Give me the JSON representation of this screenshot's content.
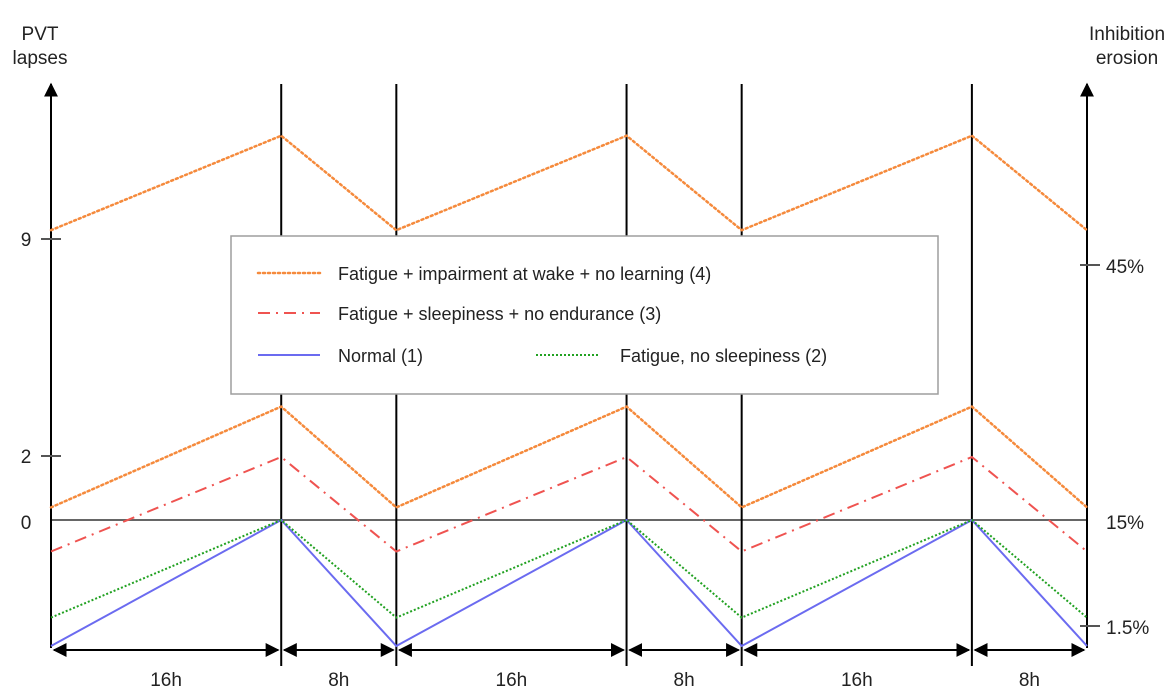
{
  "chart_data": {
    "type": "line",
    "left_axis_label": [
      "PVT",
      "lapses"
    ],
    "right_axis_label": [
      "Inhibition",
      "erosion"
    ],
    "left_ticks": [
      "9",
      "2",
      "0"
    ],
    "right_ticks": [
      "45%",
      "15%",
      "1.5%"
    ],
    "durations": [
      "16h",
      "8h",
      "16h",
      "8h",
      "16h",
      "8h"
    ],
    "phase_hours": [
      16,
      8,
      16,
      8,
      16,
      8
    ],
    "colors": {
      "s4": "#f58a3c",
      "s3": "#ef5350",
      "s1": "#6b6bf0",
      "s2": "#21a121"
    },
    "series": [
      {
        "name": "Fatigue + impairment at wake + no learning (4)",
        "key": "s4",
        "style": "dotted",
        "segments": [
          {
            "hours": [
              0,
              16,
              24,
              40,
              48,
              64,
              72
            ],
            "values": [
              9.2,
              12.2,
              9.2,
              12.2,
              9.2,
              12.2,
              9.2
            ]
          },
          {
            "hours": [
              0,
              16,
              24,
              40,
              48,
              64,
              72
            ],
            "values": [
              0.4,
              3.6,
              0.4,
              3.6,
              0.4,
              3.6,
              0.4
            ]
          }
        ]
      },
      {
        "name": "Fatigue + sleepiness + no endurance (3)",
        "key": "s3",
        "style": "dashdot",
        "segments": [
          {
            "hours": [
              0,
              16,
              24,
              40,
              48,
              64,
              72
            ],
            "values": [
              -1,
              2,
              -1,
              2,
              -1,
              2,
              -1
            ]
          }
        ]
      },
      {
        "name": "Normal (1)",
        "key": "s1",
        "style": "solid",
        "segments": [
          {
            "hours": [
              0,
              16,
              24,
              40,
              48,
              64,
              72
            ],
            "values": [
              -4,
              0,
              -4,
              0,
              -4,
              0,
              -4
            ]
          }
        ]
      },
      {
        "name": "Fatigue, no sleepiness (2)",
        "key": "s2",
        "style": "dotted-fine",
        "segments": [
          {
            "hours": [
              0,
              16,
              24,
              40,
              48,
              64,
              72
            ],
            "values": [
              -3.1,
              0,
              -3.1,
              0,
              -3.1,
              0,
              -3.1
            ]
          }
        ]
      }
    ],
    "legend": [
      [
        "s4"
      ],
      [
        "s3"
      ],
      [
        "s1",
        "s2"
      ]
    ]
  }
}
